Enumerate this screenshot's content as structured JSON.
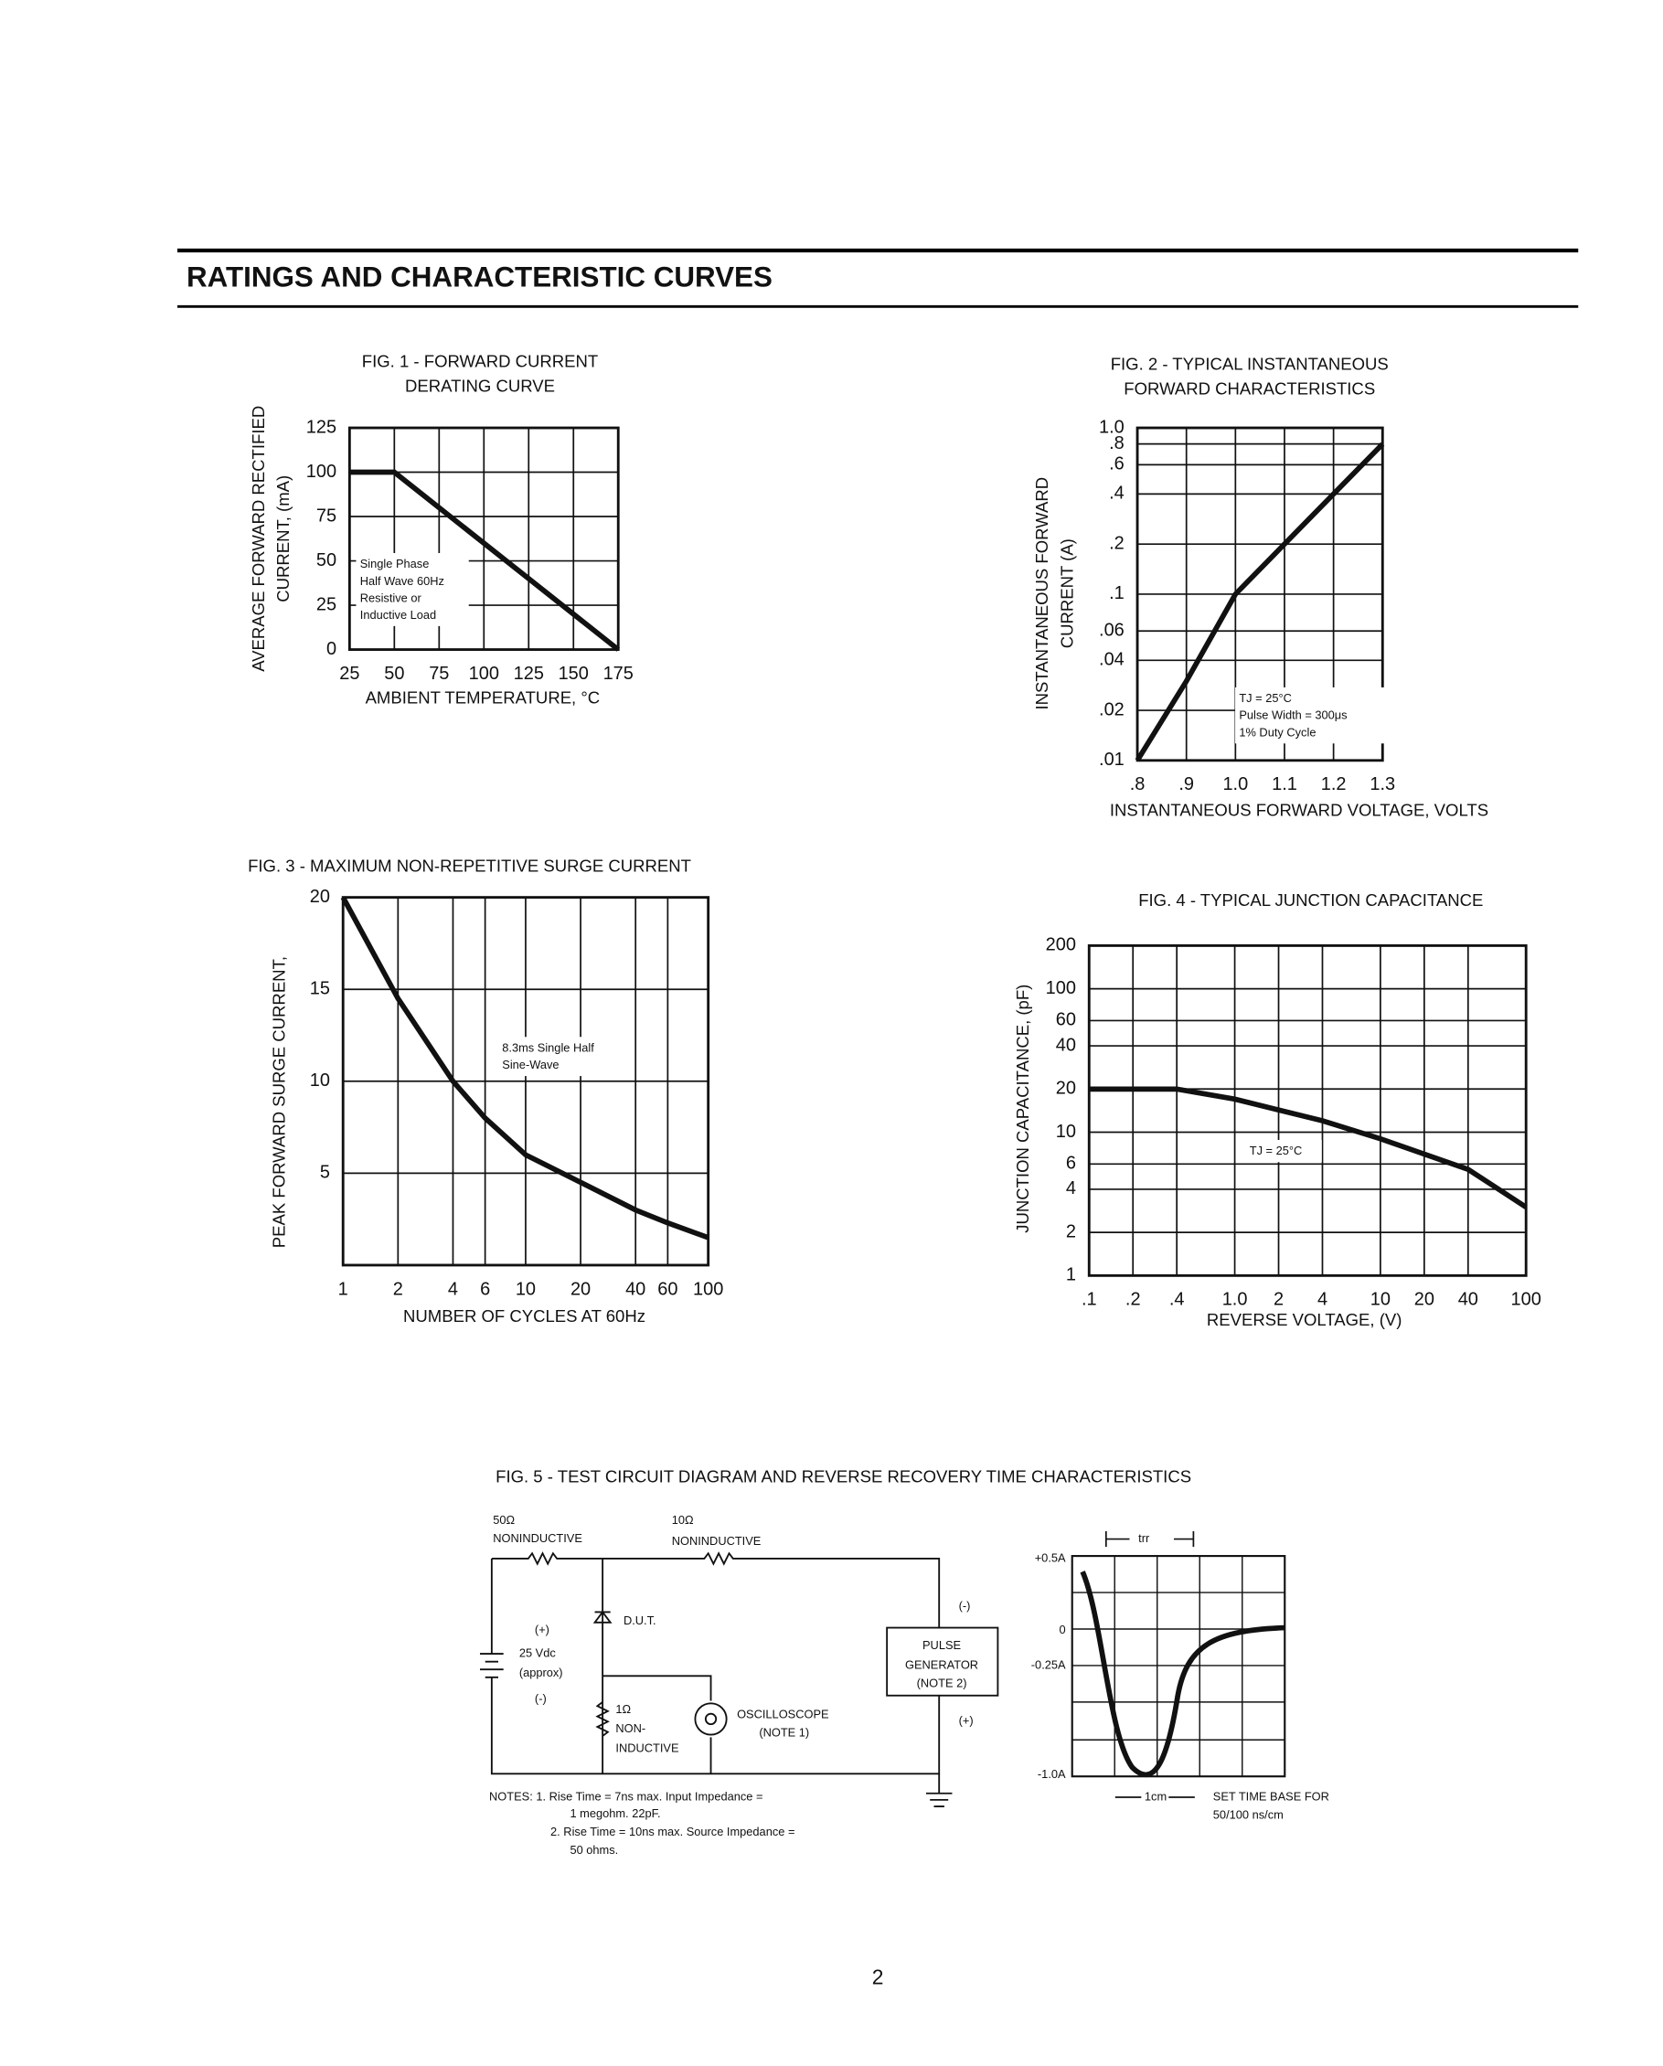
{
  "header": {
    "title": "RATINGS AND CHARACTERISTIC CURVES"
  },
  "chart_data": [
    {
      "type": "line",
      "title": [
        "FIG. 1 - FORWARD CURRENT",
        "DERATING CURVE"
      ],
      "y_label": [
        "AVERAGE FORWARD RECTIFIED",
        "CURRENT, (mA)"
      ],
      "x_label": "AMBIENT TEMPERATURE, °C",
      "x": [
        25,
        50,
        175
      ],
      "values": [
        100,
        100,
        0
      ],
      "color": "#111",
      "xlim": [
        25,
        175
      ],
      "xticks": [
        25,
        50,
        75,
        100,
        125,
        150,
        175
      ],
      "ylim": [
        0,
        125
      ],
      "yticks": [
        0,
        25,
        50,
        75,
        100,
        125
      ],
      "grid": true,
      "annotation": [
        "Single Phase",
        "Half Wave 60Hz",
        "Resistive or",
        "Inductive Load"
      ]
    },
    {
      "type": "line",
      "title": [
        "FIG. 2 - TYPICAL INSTANTANEOUS",
        "FORWARD CHARACTERISTICS"
      ],
      "y_label": [
        "INSTANTANEOUS FORWARD",
        "CURRENT (A)"
      ],
      "x_label": "INSTANTANEOUS FORWARD VOLTAGE, VOLTS",
      "x": [
        0.8,
        0.9,
        1.0,
        1.1,
        1.2,
        1.3
      ],
      "values": [
        0.01,
        0.03,
        0.1,
        0.2,
        0.4,
        0.8
      ],
      "color": "#111",
      "xlim": [
        0.8,
        1.3
      ],
      "xticks": [
        {
          "value": 0.8,
          "label": ".8"
        },
        {
          "value": 0.9,
          "label": ".9"
        },
        {
          "value": 1,
          "label": "1.0"
        },
        1.1,
        1.2,
        1.3
      ],
      "ylim": [
        0.01,
        1
      ],
      "y_scale": "log",
      "yticks": [
        {
          "value": 0.01,
          "label": ".01"
        },
        {
          "value": 0.02,
          "label": ".02"
        },
        {
          "value": 0.04,
          "label": ".04"
        },
        {
          "value": 0.06,
          "label": ".06"
        },
        {
          "value": 0.1,
          "label": ".1"
        },
        {
          "value": 0.2,
          "label": ".2"
        },
        {
          "value": 0.4,
          "label": ".4"
        },
        {
          "value": 0.6,
          "label": ".6"
        },
        {
          "value": 0.8,
          "label": ".8"
        },
        {
          "value": 1,
          "label": "1.0"
        }
      ],
      "grid": true,
      "annotation": [
        "TJ = 25°C",
        "Pulse Width = 300μs",
        "1% Duty Cycle"
      ]
    },
    {
      "type": "line",
      "title": [
        "FIG. 3 - MAXIMUM NON-REPETITIVE SURGE CURRENT"
      ],
      "y_label": [
        "PEAK FORWARD SURGE CURRENT,"
      ],
      "x_label": "NUMBER OF CYCLES AT 60Hz",
      "x": [
        1,
        2,
        4,
        6,
        10,
        20,
        40,
        60,
        100
      ],
      "values": [
        20,
        14.5,
        10,
        8,
        6,
        4.5,
        3,
        2.3,
        1.5
      ],
      "color": "#111",
      "xlim": [
        1,
        100
      ],
      "x_scale": "log",
      "xticks": [
        1,
        2,
        4,
        6,
        10,
        20,
        40,
        60,
        100
      ],
      "ylim": [
        0,
        20
      ],
      "yticks": [
        5,
        10,
        15,
        20
      ],
      "grid": true,
      "annotation": [
        "8.3ms Single Half",
        "Sine-Wave"
      ]
    },
    {
      "type": "line",
      "title": [
        "FIG. 4 - TYPICAL JUNCTION CAPACITANCE"
      ],
      "y_label": [
        "JUNCTION CAPACITANCE, (pF)"
      ],
      "x_label": "REVERSE VOLTAGE, (V)",
      "x": [
        0.1,
        0.4,
        1,
        4,
        10,
        40,
        100
      ],
      "values": [
        20,
        20,
        17,
        12,
        9,
        5.5,
        3
      ],
      "color": "#111",
      "xlim": [
        0.1,
        100
      ],
      "x_scale": "log",
      "xticks": [
        {
          "value": 0.1,
          "label": ".1"
        },
        {
          "value": 0.2,
          "label": ".2"
        },
        {
          "value": 0.4,
          "label": ".4"
        },
        {
          "value": 1,
          "label": "1.0"
        },
        2,
        4,
        10,
        20,
        40,
        100
      ],
      "ylim": [
        1,
        200
      ],
      "y_scale": "log",
      "yticks": [
        1,
        2,
        4,
        6,
        10,
        20,
        40,
        60,
        100,
        200
      ],
      "grid": true,
      "annotation": [
        "TJ = 25°C"
      ]
    }
  ],
  "figure5": {
    "title": "FIG. 5 - TEST CIRCUIT DIAGRAM AND REVERSE RECOVERY TIME CHARACTERISTICS",
    "labels": [
      "50Ω",
      "NONINDUCTIVE",
      "10Ω",
      "NONINDUCTIVE",
      "D.U.T.",
      "(+)",
      "25 Vdc",
      "(approx)",
      "(-)",
      "1Ω",
      "NON-",
      "INDUCTIVE",
      "OSCILLOSCOPE",
      "(NOTE 1)",
      "(-)",
      "PULSE",
      "GENERATOR",
      "(NOTE 2)",
      "(+)"
    ],
    "notes": [
      "NOTES: 1. Rise Time = 7ns max. Input Impedance =",
      "1 megohm. 22pF.",
      "2. Rise Time = 10ns max. Source Impedance =",
      "50 ohms."
    ],
    "waveform_labels": [
      "trr",
      "+0.5A",
      "0",
      "-0.25A",
      "-1.0A",
      "1cm",
      "SET TIME BASE FOR",
      "50/100 ns/cm"
    ]
  },
  "page_number": "2"
}
